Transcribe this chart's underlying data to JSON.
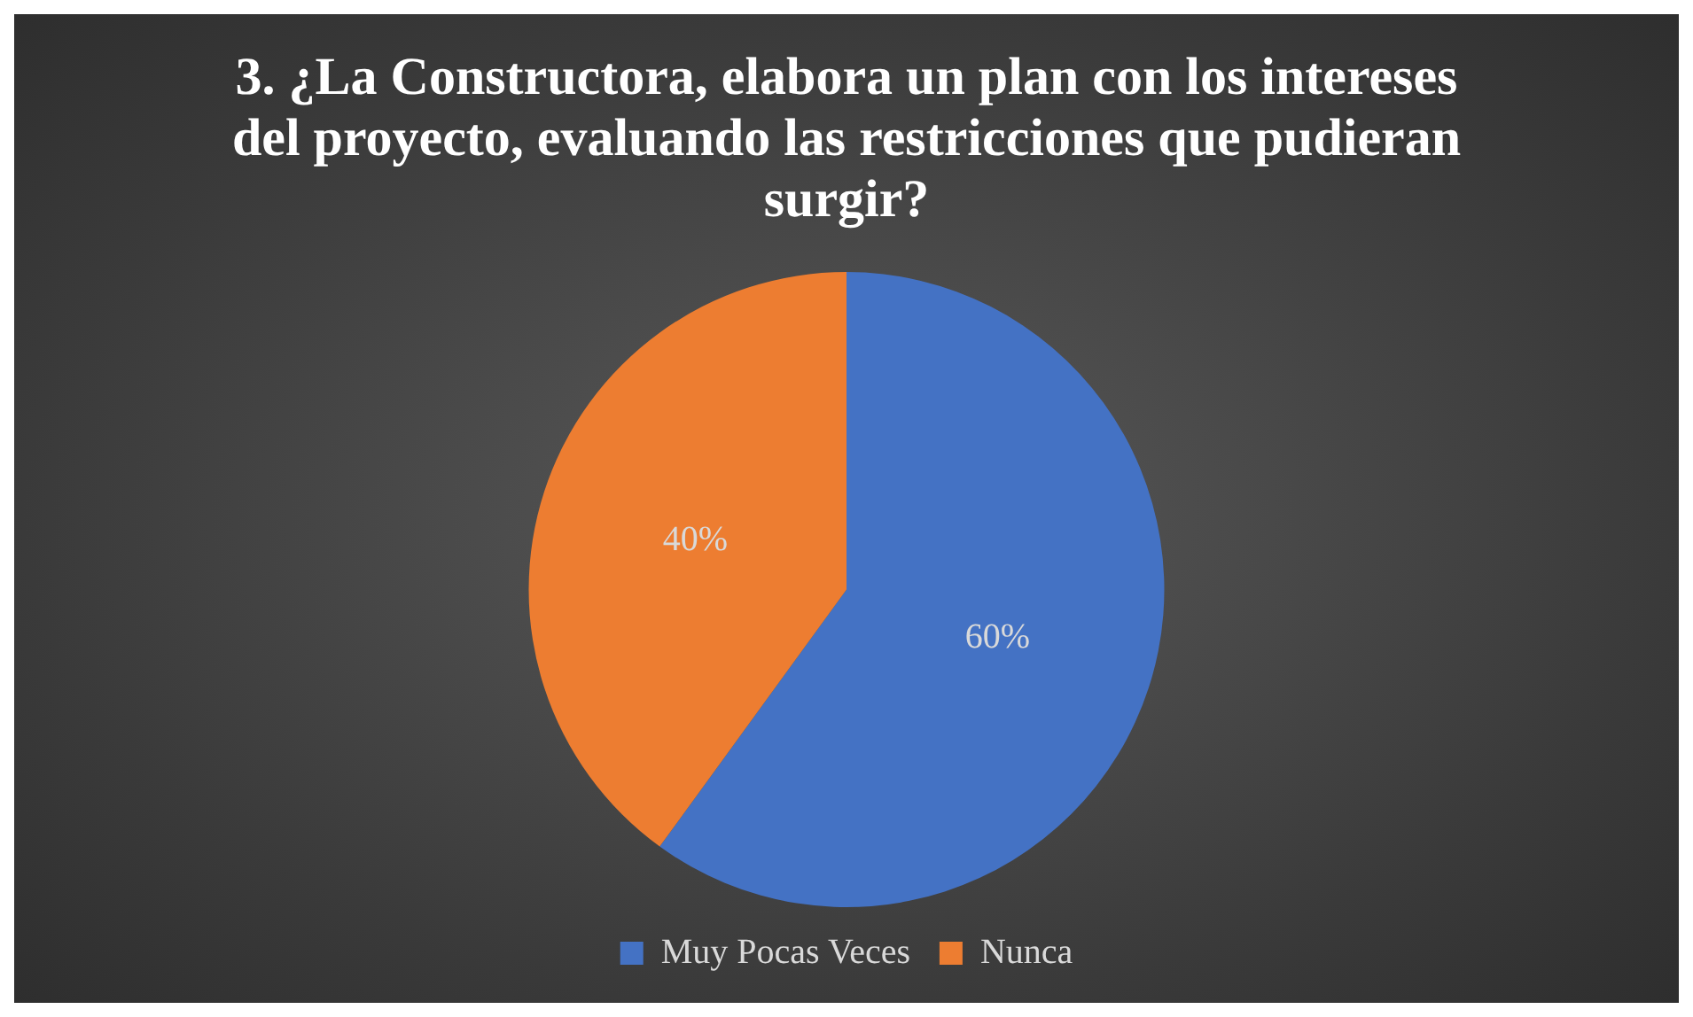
{
  "chart_data": {
    "type": "pie",
    "title": "3. ¿La Constructora, elabora un plan con los intereses del proyecto, evaluando las restricciones que pudieran surgir?",
    "categories": [
      "Muy Pocas Veces",
      "Nunca"
    ],
    "values": [
      60,
      40
    ],
    "colors": [
      "#4472c4",
      "#ed7d31"
    ],
    "value_labels": [
      "60%",
      "40%"
    ],
    "legend": "bottom"
  }
}
